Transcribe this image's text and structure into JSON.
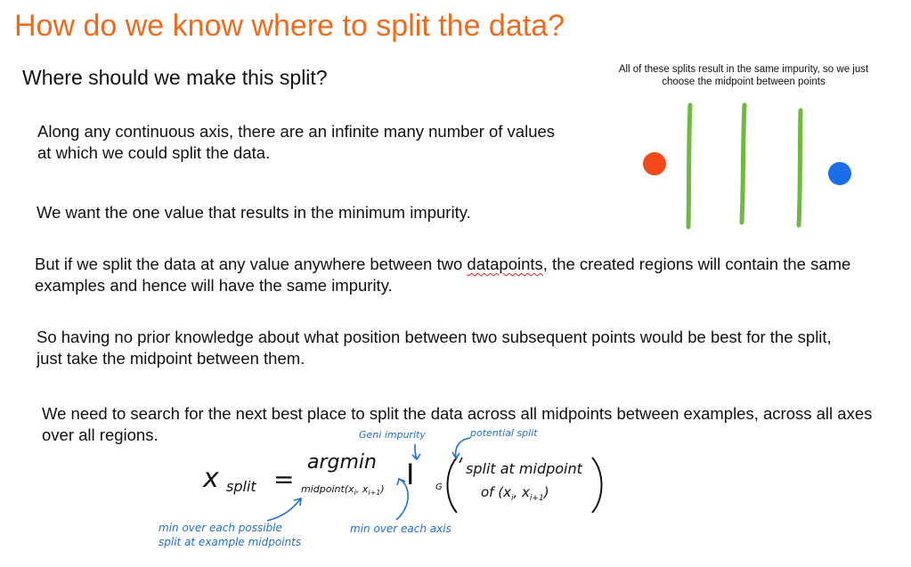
{
  "slide": {
    "title": "How do we know where to split the data?",
    "subtitle": "Where should we make this split?",
    "note": "All of these splits result in the same impurity, so we just choose the midpoint between points",
    "paragraphs": {
      "p1": "Along any continuous axis, there are an infinite many number of values at which we could split the data.",
      "p2": "We want the one value that results in the minimum impurity.",
      "p3_before": "But if we split the data at any value anywhere between two ",
      "p3_flagged": "datapoints",
      "p3_after": ", the created regions will contain the same examples and hence will have the same impurity.",
      "p4_line1": "So having no prior knowledge about what position between two subsequent points would be best for the split,",
      "p4_line2": "just take the midpoint between them.",
      "p5": "We need to search for the next best place to split the data across all midpoints between examples, across all axes over all regions."
    },
    "colors": {
      "title": "#f06a1c",
      "red_point": "#f24a1a",
      "blue_point": "#1a6fe8",
      "split_lines": "#6cbb3c",
      "annotation": "#1f6fd1"
    }
  },
  "formula": {
    "lhs": "x",
    "lhs_sub": "split",
    "equals": "=",
    "operator": "argmin",
    "operator_sub": "midpoint(x",
    "impurity_symbol": "I",
    "impurity_sub": "G",
    "argument_line1": "split at midpoint",
    "argument_line2": "of (x",
    "annotations": {
      "gini": "Geni impurity",
      "potential": "potential split",
      "min_possible_line1": "min over each possible",
      "min_possible_line2": "split at example midpoints",
      "min_axis": "min over each axis"
    }
  }
}
